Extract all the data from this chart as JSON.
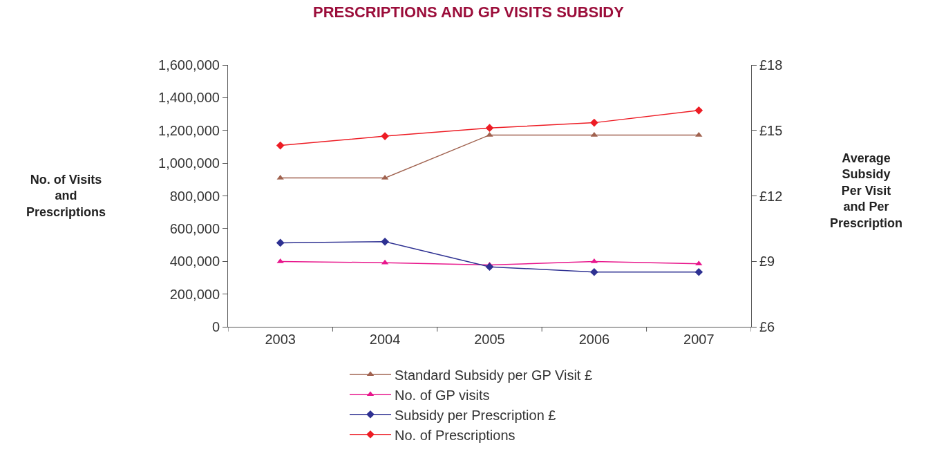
{
  "chart_data": {
    "type": "line",
    "title": "PRESCRIPTIONS AND GP VISITS SUBSIDY",
    "ylabel": "No. of Visits\nand\nPrescriptions",
    "y2label": "Average\nSubsidy\nPer Visit\nand Per\nPrescription",
    "categories": [
      "2003",
      "2004",
      "2005",
      "2006",
      "2007"
    ],
    "series": [
      {
        "name": "Standard Subsidy per GP Visit £",
        "color": "#a0624f",
        "axis": "y2",
        "marker": "triangle",
        "values": [
          12.82,
          12.82,
          14.79,
          14.79,
          14.79
        ]
      },
      {
        "name": "No. of GP visits",
        "color": "#e8178c",
        "marker": "triangle",
        "values": [
          399000,
          392000,
          378000,
          399000,
          385000
        ]
      },
      {
        "name": "Subsidy per Prescription £",
        "color": "#2e3192",
        "axis": "y2",
        "marker": "diamond",
        "values": [
          9.85,
          9.9,
          8.75,
          8.51,
          8.51
        ]
      },
      {
        "name": "No. of Prescriptions",
        "color": "#ed1c24",
        "marker": "diamond",
        "values": [
          1108000,
          1165000,
          1215000,
          1247000,
          1322000
        ]
      }
    ],
    "ylim": [
      0,
      1600000
    ],
    "yticks": [
      {
        "value": 0,
        "label": "0"
      },
      {
        "value": 200000,
        "label": "200,000"
      },
      {
        "value": 400000,
        "label": "400,000"
      },
      {
        "value": 600000,
        "label": "600,000"
      },
      {
        "value": 800000,
        "label": "800,000"
      },
      {
        "value": 1000000,
        "label": "1,000,000"
      },
      {
        "value": 1200000,
        "label": "1,200,000"
      },
      {
        "value": 1400000,
        "label": "1,400,000"
      },
      {
        "value": 1600000,
        "label": "1,600,000"
      }
    ],
    "y2lim": [
      6,
      18
    ],
    "y2ticks": [
      {
        "value": 6,
        "label": "£6"
      },
      {
        "value": 9,
        "label": "£9"
      },
      {
        "value": 12,
        "label": "£12"
      },
      {
        "value": 15,
        "label": "£15"
      },
      {
        "value": 18,
        "label": "£18"
      }
    ],
    "legend": "bottom",
    "line_style": "solid"
  }
}
